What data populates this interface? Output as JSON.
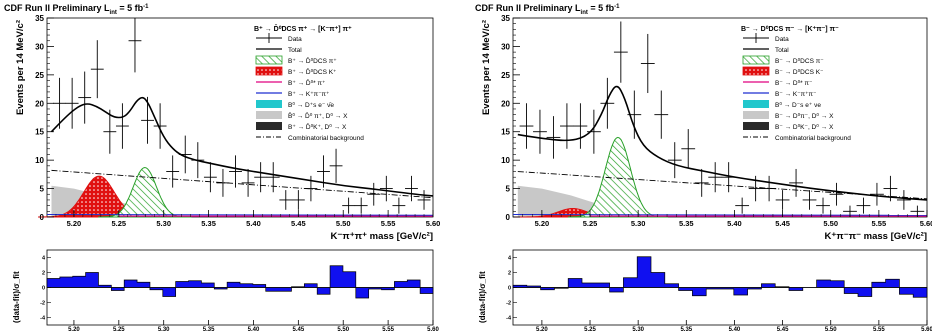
{
  "chart_data": [
    {
      "type": "line",
      "panel": "left",
      "title": "CDF Run II Preliminary L",
      "title_sub": "int",
      "title_tail": " = 5 fb",
      "title_sup": "-1",
      "xlabel": "K⁻π⁺π⁺ mass [GeV/c²]",
      "ylabel": "Events per 14 MeV/c²",
      "pull_ylabel": "(data-fit)/σ_fit",
      "xlim": [
        5.17,
        5.6
      ],
      "ylim": [
        0,
        35
      ],
      "pull_ylim": [
        -5,
        5
      ],
      "xticks": [
        "5.20",
        "5.25",
        "5.30",
        "5.35",
        "5.40",
        "5.45",
        "5.50",
        "5.55",
        "5.60"
      ],
      "yticks": [
        "0",
        "5",
        "10",
        "15",
        "20",
        "25",
        "30",
        "35"
      ],
      "pull_yticks": [
        "-4",
        "-2",
        "0",
        "2",
        "4"
      ],
      "legend_title": "B⁺ → D̄⁰DCS π⁺ → [K⁻π⁺] π⁺",
      "legend": [
        {
          "label": "Data",
          "style": "data"
        },
        {
          "label": "Total",
          "style": "line",
          "color": "#000000"
        },
        {
          "label": "B⁺ → D̄⁰DCS π⁺",
          "style": "hatch-green"
        },
        {
          "label": "B⁺ → D̄⁰DCS K⁺",
          "style": "hatch-red"
        },
        {
          "label": "B⁺ → D̄⁰* π⁺",
          "style": "line",
          "color": "#e0007f"
        },
        {
          "label": "B⁺ → K⁺π⁻π⁺",
          "style": "line",
          "color": "#1f2fd0"
        },
        {
          "label": "B⁰ → D⁺s e⁻ ν̄e",
          "style": "fill",
          "color": "#22c7cc"
        },
        {
          "label": "B̄⁰ → D̄⁰ π⁺, D⁰ → X",
          "style": "fill",
          "color": "#c8c8c8"
        },
        {
          "label": "B⁺ → D̄⁰K⁺, D⁰ → X",
          "style": "fill",
          "color": "#2a2a2a"
        },
        {
          "label": "Combinatorial background",
          "style": "dashdot",
          "color": "#000000"
        }
      ],
      "data_points": {
        "x": [
          5.184,
          5.198,
          5.212,
          5.226,
          5.24,
          5.254,
          5.268,
          5.282,
          5.296,
          5.31,
          5.324,
          5.338,
          5.352,
          5.366,
          5.38,
          5.394,
          5.408,
          5.422,
          5.436,
          5.45,
          5.464,
          5.478,
          5.492,
          5.506,
          5.52,
          5.534,
          5.548,
          5.562,
          5.576,
          5.59
        ],
        "y": [
          20,
          20,
          21,
          26,
          15,
          16,
          31,
          17,
          16,
          8,
          11,
          10,
          7,
          6,
          8,
          6,
          7,
          7,
          3,
          3,
          5,
          8,
          9,
          2,
          2,
          4,
          5,
          2,
          5,
          3
        ]
      },
      "total": {
        "x": [
          5.175,
          5.19,
          5.205,
          5.215,
          5.225,
          5.235,
          5.245,
          5.255,
          5.262,
          5.27,
          5.277,
          5.283,
          5.29,
          5.3,
          5.31,
          5.32,
          5.335,
          5.35,
          5.38,
          5.42,
          5.46,
          5.5,
          5.54,
          5.58,
          5.6
        ],
        "y": [
          15,
          17.5,
          19.5,
          20,
          19.5,
          18.5,
          17.5,
          17.5,
          18.5,
          20.5,
          21.2,
          20,
          17.5,
          14,
          12,
          10.8,
          10,
          9.5,
          8.5,
          7.5,
          6.5,
          5.5,
          4.8,
          4,
          3.7
        ]
      },
      "combinatorial": {
        "x": [
          5.175,
          5.6
        ],
        "y": [
          8.2,
          3.4
        ]
      },
      "signal_green": {
        "mean": 5.279,
        "sigma": 0.013,
        "amp": 8.7
      },
      "signal_red": {
        "mean": 5.228,
        "sigma": 0.017,
        "amp": 7.2
      },
      "gray": {
        "x": [
          5.175,
          5.2,
          5.23,
          5.26,
          5.3,
          5.33
        ],
        "y": [
          5.5,
          5.0,
          3.8,
          2.2,
          0.5,
          0
        ]
      },
      "pull": [
        1.2,
        1.4,
        1.5,
        2.0,
        0.3,
        -0.4,
        1.0,
        0.7,
        -0.3,
        -1.2,
        0.8,
        0.9,
        0.6,
        -0.2,
        0.7,
        0.5,
        0.4,
        -0.5,
        -0.5,
        0.1,
        0.5,
        -0.9,
        2.9,
        2.1,
        -1.4,
        -0.2,
        -0.3,
        0.8,
        1.0,
        -0.8
      ]
    },
    {
      "type": "line",
      "panel": "right",
      "title": "CDF Run II Preliminary L",
      "title_sub": "int",
      "title_tail": " = 5 fb",
      "title_sup": "-1",
      "xlabel": "K⁺π⁻π⁻ mass [GeV/c²]",
      "ylabel": "Events per 14 MeV/c²",
      "pull_ylabel": "(data-fit)/σ_fit",
      "xlim": [
        5.17,
        5.6
      ],
      "ylim": [
        0,
        35
      ],
      "pull_ylim": [
        -5,
        5
      ],
      "xticks": [
        "5.20",
        "5.25",
        "5.30",
        "5.35",
        "5.40",
        "5.45",
        "5.50",
        "5.55",
        "5.60"
      ],
      "yticks": [
        "0",
        "5",
        "10",
        "15",
        "20",
        "25",
        "30",
        "35"
      ],
      "pull_yticks": [
        "-4",
        "-2",
        "0",
        "2",
        "4"
      ],
      "legend_title": "B⁻ → D⁰DCS π⁻ → [K⁺π⁻] π⁻",
      "legend": [
        {
          "label": "Data",
          "style": "data"
        },
        {
          "label": "Total",
          "style": "line",
          "color": "#000000"
        },
        {
          "label": "B⁻ → D⁰DCS π⁻",
          "style": "hatch-green"
        },
        {
          "label": "B⁻ → D⁰DCS K⁻",
          "style": "hatch-red"
        },
        {
          "label": "B⁻ → D⁰* π⁻",
          "style": "line",
          "color": "#e0007f"
        },
        {
          "label": "B⁻ → K⁻π⁺π⁻",
          "style": "line",
          "color": "#1f2fd0"
        },
        {
          "label": "B⁰ → D⁻s e⁺ νe",
          "style": "fill",
          "color": "#22c7cc"
        },
        {
          "label": "B⁻ → D⁰π⁻, D⁰ → X",
          "style": "fill",
          "color": "#c8c8c8"
        },
        {
          "label": "B⁻ → D⁰K⁻, D⁰ → X",
          "style": "fill",
          "color": "#2a2a2a"
        },
        {
          "label": "Combinatorial background",
          "style": "dashdot",
          "color": "#000000"
        }
      ],
      "data_points": {
        "x": [
          5.184,
          5.198,
          5.212,
          5.226,
          5.24,
          5.254,
          5.268,
          5.282,
          5.296,
          5.31,
          5.324,
          5.338,
          5.352,
          5.366,
          5.38,
          5.394,
          5.408,
          5.422,
          5.436,
          5.45,
          5.464,
          5.478,
          5.492,
          5.506,
          5.52,
          5.534,
          5.548,
          5.562,
          5.576,
          5.59
        ],
        "y": [
          16,
          15,
          14,
          16,
          16,
          15,
          20,
          29,
          18,
          27,
          18,
          10,
          12,
          6,
          7,
          7,
          2,
          5,
          5,
          3,
          6,
          3,
          2,
          4,
          1,
          2,
          4,
          5,
          3,
          1
        ]
      },
      "total": {
        "x": [
          5.175,
          5.2,
          5.23,
          5.25,
          5.262,
          5.27,
          5.278,
          5.286,
          5.295,
          5.305,
          5.32,
          5.34,
          5.37,
          5.4,
          5.44,
          5.48,
          5.52,
          5.56,
          5.6
        ],
        "y": [
          14.5,
          13.8,
          13.3,
          14.5,
          18,
          21.5,
          23.5,
          21,
          16,
          12.5,
          10.5,
          9,
          8,
          7,
          6,
          5,
          4.2,
          3.5,
          3.0
        ]
      },
      "combinatorial": {
        "x": [
          5.175,
          5.6
        ],
        "y": [
          8.0,
          3.2
        ]
      },
      "signal_green": {
        "mean": 5.279,
        "sigma": 0.013,
        "amp": 14
      },
      "signal_red": {
        "mean": 5.232,
        "sigma": 0.015,
        "amp": 1.5
      },
      "gray": {
        "x": [
          5.175,
          5.2,
          5.23,
          5.26,
          5.3,
          5.33
        ],
        "y": [
          5.5,
          5.0,
          3.8,
          2.2,
          0.5,
          0
        ]
      },
      "pull": [
        0.3,
        0.2,
        -0.3,
        -0.1,
        1.2,
        0.6,
        0.6,
        -0.6,
        1.3,
        4.1,
        2.0,
        0.5,
        -0.4,
        -1.1,
        -0.2,
        -0.2,
        -1.0,
        -0.2,
        0.5,
        0.1,
        -0.4,
        0.0,
        1.0,
        0.9,
        -0.8,
        -1.2,
        0.7,
        1.1,
        -0.9,
        -1.3
      ]
    }
  ]
}
